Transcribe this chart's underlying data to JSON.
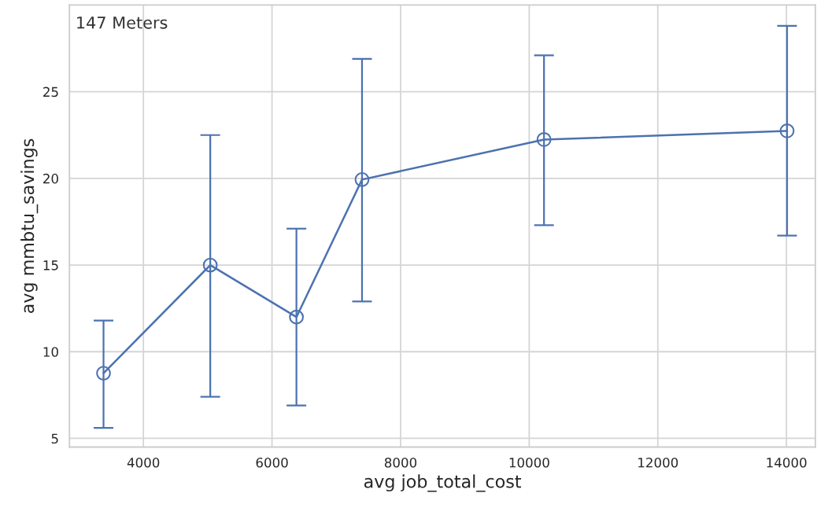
{
  "chart_data": {
    "type": "line",
    "xlabel": "avg job_total_cost",
    "ylabel": "avg mmbtu_savings",
    "annotations": [
      "147 Meters"
    ],
    "x": [
      3380,
      5040,
      6380,
      7400,
      10230,
      14010
    ],
    "series": [
      {
        "color": "#4c72b0",
        "values": [
          8.76,
          15.0,
          12.0,
          19.93,
          22.24,
          22.74
        ],
        "errors": [
          [
            5.6,
            11.8
          ],
          [
            7.4,
            22.5
          ],
          [
            6.9,
            17.1
          ],
          [
            12.9,
            26.9
          ],
          [
            17.3,
            27.1
          ],
          [
            16.7,
            28.8
          ]
        ]
      }
    ],
    "xlim": [
      2850,
      14450
    ],
    "ylim": [
      4.5,
      30.0
    ],
    "xticks": [
      4000,
      6000,
      8000,
      10000,
      12000,
      14000
    ],
    "yticks": [
      5,
      10,
      15,
      20,
      25
    ],
    "grid": true,
    "marker": "circle",
    "line_style": "solid"
  }
}
